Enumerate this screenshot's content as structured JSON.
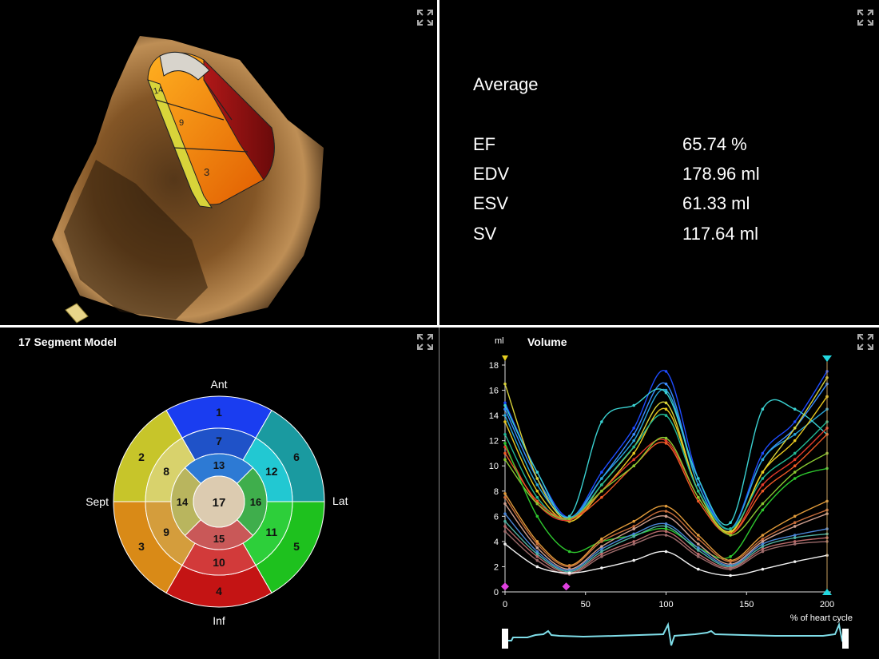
{
  "viewer3d": {
    "segment_labels": [
      "14",
      "9",
      "3"
    ]
  },
  "metrics": {
    "heading": "Average",
    "rows": [
      {
        "label": "EF",
        "value": "65.74 %"
      },
      {
        "label": "EDV",
        "value": "178.96 ml"
      },
      {
        "label": "ESV",
        "value": "61.33 ml"
      },
      {
        "label": "SV",
        "value": "117.64 ml"
      }
    ]
  },
  "bullseye": {
    "title": "17 Segment Model",
    "directions": {
      "top": "Ant",
      "left": "Sept",
      "right": "Lat",
      "bottom": "Inf"
    },
    "segments": [
      {
        "id": "1",
        "color": "#1a3df0"
      },
      {
        "id": "2",
        "color": "#c7c52a"
      },
      {
        "id": "3",
        "color": "#d98a17"
      },
      {
        "id": "4",
        "color": "#c41414"
      },
      {
        "id": "5",
        "color": "#1ec11e"
      },
      {
        "id": "6",
        "color": "#1a9aa0"
      },
      {
        "id": "7",
        "color": "#1f52c8"
      },
      {
        "id": "8",
        "color": "#d8d26c"
      },
      {
        "id": "9",
        "color": "#d49d3c"
      },
      {
        "id": "10",
        "color": "#d23a3a"
      },
      {
        "id": "11",
        "color": "#2dcf3a"
      },
      {
        "id": "12",
        "color": "#22c8d2"
      },
      {
        "id": "13",
        "color": "#2d7ad4"
      },
      {
        "id": "14",
        "color": "#b9b55e"
      },
      {
        "id": "15",
        "color": "#c95858"
      },
      {
        "id": "16",
        "color": "#3fae4c"
      },
      {
        "id": "17",
        "color": "#dccbb0"
      }
    ]
  },
  "volume_chart": {
    "title": "Volume",
    "y_unit": "ml",
    "x_unit": "% of heart cycle"
  },
  "chart_data": {
    "type": "line",
    "title": "Volume",
    "ylabel": "ml",
    "xlabel": "% of heart cycle",
    "xlim": [
      0,
      200
    ],
    "ylim": [
      0,
      18
    ],
    "xticks": [
      0,
      50,
      100,
      150,
      200
    ],
    "yticks": [
      0,
      2,
      4,
      6,
      8,
      10,
      12,
      14,
      16,
      18
    ],
    "grid": false,
    "x": [
      0,
      20,
      40,
      60,
      80,
      100,
      120,
      140,
      160,
      180,
      200
    ],
    "series": [
      {
        "color": "#1e4cff",
        "values": [
          15,
          9.5,
          5.9,
          9.5,
          13,
          17.5,
          9,
          5,
          11,
          13.5,
          17.5
        ]
      },
      {
        "color": "#3a8cff",
        "values": [
          14.5,
          9,
          5.8,
          9,
          12.5,
          16.5,
          8.5,
          5,
          10.5,
          13,
          16.5
        ]
      },
      {
        "color": "#2aa6d8",
        "values": [
          14,
          8.5,
          5.9,
          9,
          12,
          16,
          8.5,
          5,
          10.5,
          12.5,
          14.5
        ]
      },
      {
        "color": "#3ad0d0",
        "values": [
          14.8,
          9.5,
          6,
          13.5,
          14.8,
          15.8,
          9,
          5.5,
          14.5,
          14.5,
          12.5
        ]
      },
      {
        "color": "#d8d23a",
        "values": [
          16.5,
          9,
          5.6,
          8.5,
          11.5,
          15,
          8,
          4.8,
          9.5,
          13,
          17
        ]
      },
      {
        "color": "#e8c820",
        "values": [
          13.5,
          8,
          5.6,
          8,
          11,
          14.5,
          8,
          4.7,
          9.5,
          12,
          15.5
        ]
      },
      {
        "color": "#22b894",
        "values": [
          12.5,
          7.5,
          5.7,
          8.5,
          11.5,
          14,
          8,
          5,
          9,
          11,
          13.5
        ]
      },
      {
        "color": "#e23a2a",
        "values": [
          11.5,
          7,
          5.7,
          8,
          10.5,
          12,
          7.5,
          4.6,
          8.5,
          10.5,
          13
        ]
      },
      {
        "color": "#ef5a26",
        "values": [
          11,
          7.2,
          5.8,
          7.5,
          10,
          11.8,
          7.2,
          4.6,
          8,
          10,
          12.5
        ]
      },
      {
        "color": "#8ac832",
        "values": [
          10.5,
          7,
          5.8,
          8,
          10,
          12.2,
          7.5,
          4.5,
          7,
          9.5,
          11
        ]
      },
      {
        "color": "#2ec82e",
        "values": [
          11.8,
          6,
          3.2,
          4,
          4.5,
          5,
          3.5,
          2.8,
          6.5,
          9,
          9.8
        ]
      },
      {
        "color": "#e09a3a",
        "values": [
          7.8,
          4,
          2.1,
          4.2,
          5.6,
          6.8,
          4.5,
          2.5,
          4.5,
          6,
          7.2
        ]
      },
      {
        "color": "#c86e3c",
        "values": [
          7.5,
          3.8,
          2,
          4,
          5.2,
          6.4,
          4.2,
          2.4,
          4.2,
          5.5,
          6.5
        ]
      },
      {
        "color": "#d0a090",
        "values": [
          7,
          3.5,
          1.8,
          3.6,
          5,
          6,
          3.8,
          2.2,
          4,
          5.2,
          6.2
        ]
      },
      {
        "color": "#4a86d8",
        "values": [
          6.2,
          3.2,
          1.7,
          3.4,
          4.6,
          5.4,
          3.5,
          2.1,
          3.8,
          4.5,
          5
        ]
      },
      {
        "color": "#50b0a0",
        "values": [
          5.6,
          3,
          1.6,
          3.2,
          4.4,
          5.2,
          3.3,
          2,
          3.6,
          4.3,
          4.6
        ]
      },
      {
        "color": "#b86a6a",
        "values": [
          5.2,
          2.8,
          1.5,
          3,
          4,
          4.8,
          3,
          1.9,
          3.4,
          4,
          4.3
        ]
      },
      {
        "color": "#9c6b6b",
        "values": [
          4.8,
          2.5,
          1.4,
          2.8,
          3.8,
          4.5,
          2.8,
          1.8,
          3.2,
          3.8,
          4
        ]
      },
      {
        "color": "#f0f0f0",
        "values": [
          3.8,
          2,
          1.5,
          1.9,
          2.5,
          3.2,
          1.8,
          1.3,
          1.8,
          2.4,
          2.9
        ]
      }
    ],
    "markers": [
      {
        "x": 0,
        "y": 0.3
      },
      {
        "x": 38,
        "y": 0.3
      }
    ]
  }
}
